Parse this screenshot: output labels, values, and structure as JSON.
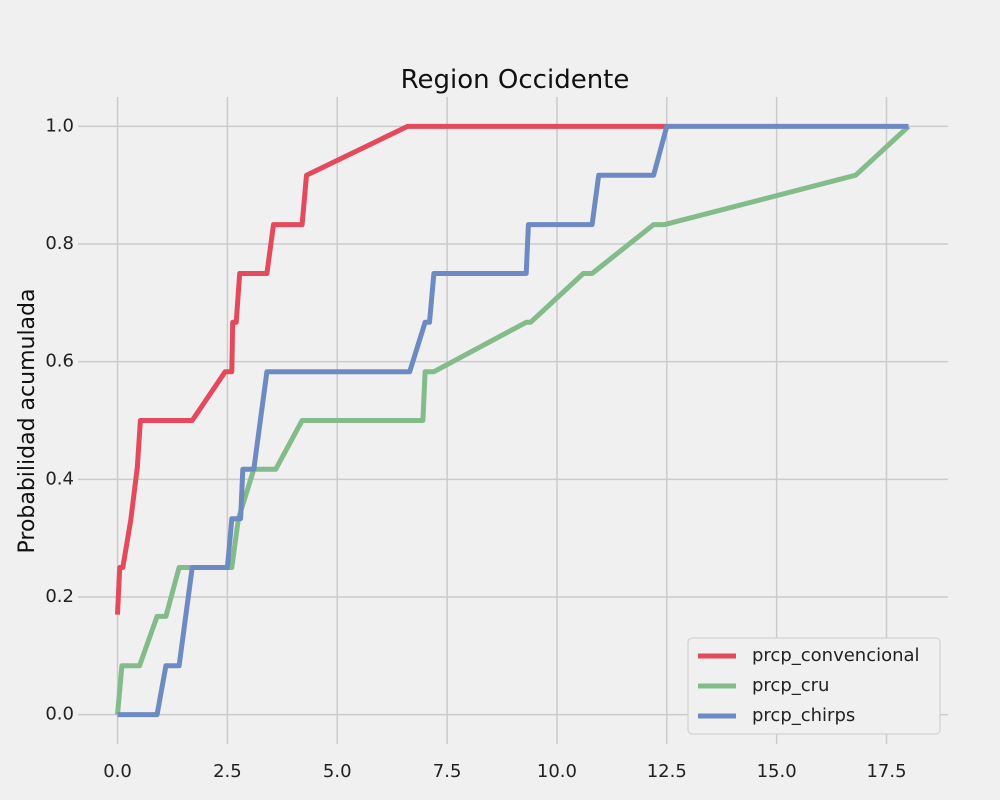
{
  "chart_data": {
    "type": "line",
    "title": "Region Occidente",
    "xlabel": "",
    "ylabel": "Probabilidad acumulada",
    "xlim": [
      -0.9,
      18.9
    ],
    "ylim": [
      -0.05,
      1.05
    ],
    "xticks": [
      0.0,
      2.5,
      5.0,
      7.5,
      10.0,
      12.5,
      15.0,
      17.5
    ],
    "xtick_labels": [
      "0.0",
      "2.5",
      "5.0",
      "7.5",
      "10.0",
      "12.5",
      "15.0",
      "17.5"
    ],
    "yticks": [
      0.0,
      0.2,
      0.4,
      0.6,
      0.8,
      1.0
    ],
    "ytick_labels": [
      "0.0",
      "0.2",
      "0.4",
      "0.6",
      "0.8",
      "1.0"
    ],
    "grid": true,
    "legend_position": "bottom-right",
    "series": [
      {
        "name": "prcp_convencional",
        "color": "#e5495c",
        "points": [
          [
            0.0,
            0.17
          ],
          [
            0.05,
            0.25
          ],
          [
            0.12,
            0.25
          ],
          [
            0.3,
            0.33
          ],
          [
            0.45,
            0.42
          ],
          [
            0.52,
            0.5
          ],
          [
            1.7,
            0.5
          ],
          [
            2.45,
            0.583
          ],
          [
            2.6,
            0.583
          ],
          [
            2.62,
            0.667
          ],
          [
            2.7,
            0.667
          ],
          [
            2.78,
            0.75
          ],
          [
            3.4,
            0.75
          ],
          [
            3.55,
            0.833
          ],
          [
            4.2,
            0.833
          ],
          [
            4.3,
            0.917
          ],
          [
            6.6,
            1.0
          ],
          [
            12.5,
            1.0
          ]
        ]
      },
      {
        "name": "prcp_cru",
        "color": "#83bb8a",
        "points": [
          [
            0.0,
            0.0
          ],
          [
            0.1,
            0.083
          ],
          [
            0.5,
            0.083
          ],
          [
            0.9,
            0.167
          ],
          [
            1.1,
            0.167
          ],
          [
            1.4,
            0.25
          ],
          [
            2.6,
            0.25
          ],
          [
            2.75,
            0.333
          ],
          [
            3.1,
            0.417
          ],
          [
            3.6,
            0.417
          ],
          [
            4.2,
            0.5
          ],
          [
            6.95,
            0.5
          ],
          [
            7.0,
            0.583
          ],
          [
            7.2,
            0.583
          ],
          [
            9.3,
            0.667
          ],
          [
            9.4,
            0.667
          ],
          [
            10.6,
            0.75
          ],
          [
            10.8,
            0.75
          ],
          [
            12.2,
            0.833
          ],
          [
            12.45,
            0.833
          ],
          [
            16.8,
            0.917
          ],
          [
            18.0,
            1.0
          ]
        ]
      },
      {
        "name": "prcp_chirps",
        "color": "#6e8ac2",
        "points": [
          [
            0.0,
            0.0
          ],
          [
            0.9,
            0.0
          ],
          [
            1.1,
            0.083
          ],
          [
            1.4,
            0.083
          ],
          [
            1.7,
            0.25
          ],
          [
            2.5,
            0.25
          ],
          [
            2.6,
            0.333
          ],
          [
            2.8,
            0.333
          ],
          [
            2.85,
            0.417
          ],
          [
            3.1,
            0.417
          ],
          [
            3.4,
            0.583
          ],
          [
            6.65,
            0.583
          ],
          [
            7.0,
            0.667
          ],
          [
            7.1,
            0.667
          ],
          [
            7.2,
            0.75
          ],
          [
            9.3,
            0.75
          ],
          [
            9.35,
            0.833
          ],
          [
            10.8,
            0.833
          ],
          [
            10.95,
            0.917
          ],
          [
            12.2,
            0.917
          ],
          [
            12.5,
            1.0
          ],
          [
            18.0,
            1.0
          ]
        ]
      }
    ]
  }
}
